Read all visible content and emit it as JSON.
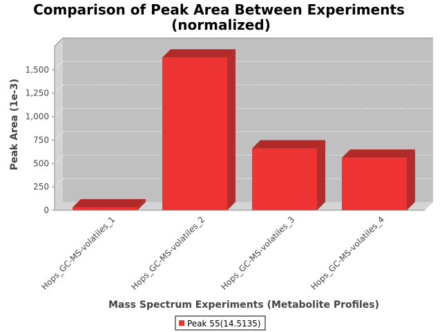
{
  "chart_data": {
    "type": "bar",
    "title": "Comparison of Peak Area Between Experiments",
    "subtitle": "(normalized)",
    "xlabel": "Mass Spectrum Experiments (Metabolite Profiles)",
    "ylabel": "Peak Area (1e-3)",
    "categories": [
      "Hops_GC-MS-volatiles_1",
      "Hops_GC-MS-volatiles_2",
      "Hops_GC-MS-volatiles_3",
      "Hops_GC-MS-volatiles_4"
    ],
    "series": [
      {
        "name": "Peak 55(14.5135)",
        "values": [
          30,
          1630,
          660,
          560
        ],
        "color": "#ee3333"
      }
    ],
    "ylim": [
      0,
      1750
    ],
    "yticks": [
      0,
      250,
      500,
      750,
      1000,
      1250,
      1500
    ],
    "ytick_labels": [
      "0",
      "250",
      "500",
      "750",
      "1,000",
      "1,250",
      "1,500"
    ],
    "grid": true,
    "legend_position": "bottom",
    "plot_background": "#c0c0c0",
    "style": "3d"
  }
}
